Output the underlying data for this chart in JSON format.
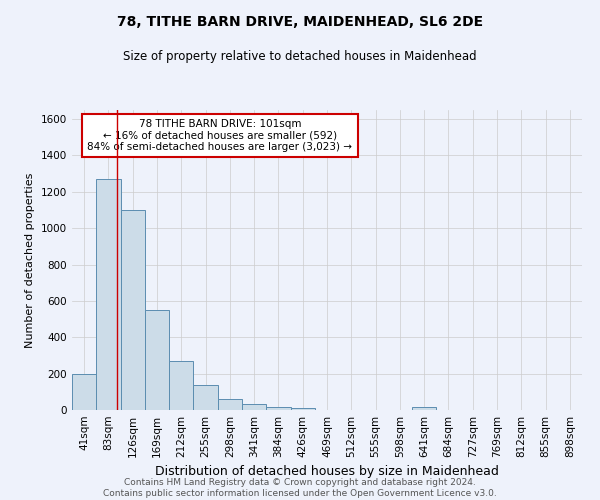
{
  "title": "78, TITHE BARN DRIVE, MAIDENHEAD, SL6 2DE",
  "subtitle": "Size of property relative to detached houses in Maidenhead",
  "xlabel": "Distribution of detached houses by size in Maidenhead",
  "ylabel": "Number of detached properties",
  "footer_line1": "Contains HM Land Registry data © Crown copyright and database right 2024.",
  "footer_line2": "Contains public sector information licensed under the Open Government Licence v3.0.",
  "bin_labels": [
    "41sqm",
    "83sqm",
    "126sqm",
    "169sqm",
    "212sqm",
    "255sqm",
    "298sqm",
    "341sqm",
    "384sqm",
    "426sqm",
    "469sqm",
    "512sqm",
    "555sqm",
    "598sqm",
    "641sqm",
    "684sqm",
    "727sqm",
    "769sqm",
    "812sqm",
    "855sqm",
    "898sqm"
  ],
  "bin_values": [
    197,
    1270,
    1100,
    550,
    270,
    135,
    60,
    33,
    18,
    12,
    0,
    0,
    0,
    0,
    18,
    0,
    0,
    0,
    0,
    0,
    0
  ],
  "bar_color": "#ccdce8",
  "bar_edge_color": "#5b8db0",
  "grid_color": "#cccccc",
  "background_color": "#eef2fb",
  "annotation_text": "78 TITHE BARN DRIVE: 101sqm\n← 16% of detached houses are smaller (592)\n84% of semi-detached houses are larger (3,023) →",
  "annotation_box_color": "white",
  "annotation_box_edge_color": "#cc0000",
  "vline_x_index": 1.35,
  "vline_color": "#cc0000",
  "ylim": [
    0,
    1650
  ],
  "yticks": [
    0,
    200,
    400,
    600,
    800,
    1000,
    1200,
    1400,
    1600
  ],
  "title_fontsize": 10,
  "subtitle_fontsize": 8.5,
  "ylabel_fontsize": 8,
  "xlabel_fontsize": 9,
  "tick_fontsize": 7.5,
  "annotation_fontsize": 7.5,
  "footer_fontsize": 6.5,
  "footer_color": "#555555"
}
